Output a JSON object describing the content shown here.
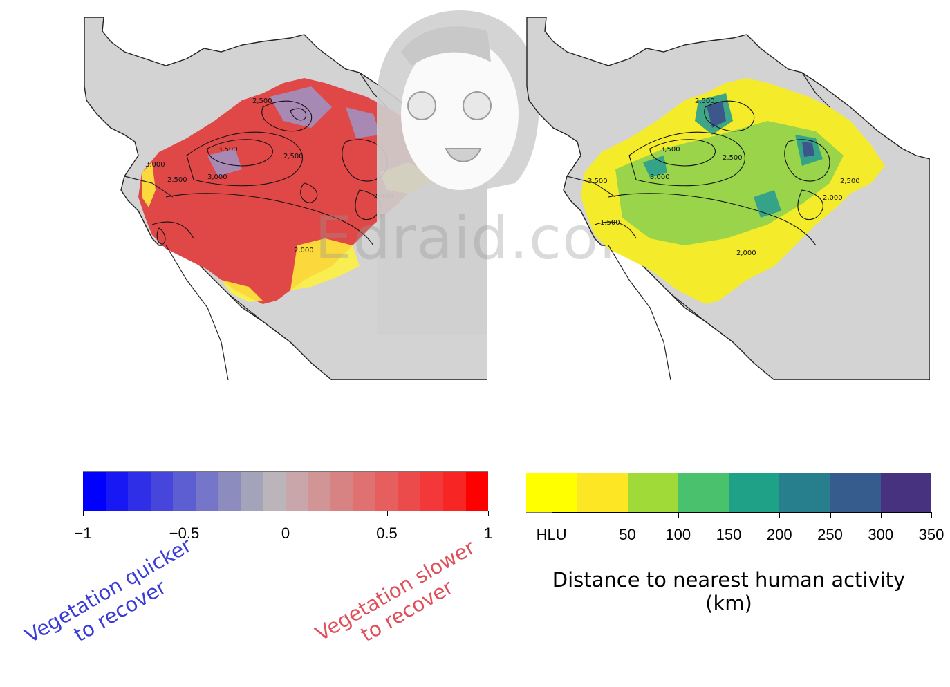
{
  "left_colorbar": {
    "colors": [
      "#0000ff",
      "#1818f4",
      "#2f2fe8",
      "#4646dd",
      "#5e5ed3",
      "#7575c9",
      "#8c8cbf",
      "#a3a3b9",
      "#bbb5bb",
      "#c8a6aa",
      "#d19596",
      "#d88383",
      "#df7171",
      "#e65e5e",
      "#ec4b4b",
      "#f23838",
      "#f82525",
      "#ff0000"
    ],
    "ticks": [
      {
        "value": -1,
        "label": "−1"
      },
      {
        "value": -0.5,
        "label": "−0.5"
      },
      {
        "value": 0,
        "label": "0"
      },
      {
        "value": 0.5,
        "label": "0.5"
      },
      {
        "value": 1,
        "label": "1"
      }
    ],
    "range": [
      -1,
      1
    ],
    "label_quicker": [
      "Vegetation quicker",
      "to recover"
    ],
    "label_slower": [
      "Vegetation slower",
      "to recover"
    ]
  },
  "right_colorbar": {
    "colors": [
      "#ffff00",
      "#fde725",
      "#a0da39",
      "#4ac16d",
      "#1fa187",
      "#277f8e",
      "#365c8d",
      "#46327e"
    ],
    "ticks": [
      {
        "index": 0.5,
        "label": "HLU"
      },
      {
        "index": 1,
        "label": ""
      },
      {
        "index": 2,
        "label": "50"
      },
      {
        "index": 3,
        "label": "100"
      },
      {
        "index": 4,
        "label": "150"
      },
      {
        "index": 5,
        "label": "200"
      },
      {
        "index": 6,
        "label": "250"
      },
      {
        "index": 7,
        "label": "300"
      },
      {
        "index": 8,
        "label": "350"
      }
    ],
    "title": [
      "Distance to nearest human activity",
      "(km)"
    ]
  },
  "contour_labels": [
    "2,500",
    "2,000",
    "3,500",
    "2,500",
    "3,000",
    "2,500",
    "3,000",
    "2,000",
    "2,000",
    "2,500",
    "1,500",
    "2,000",
    "3,500"
  ],
  "colors": {
    "land": "#d3d3d3",
    "border": "#222222",
    "contour": "#111111"
  },
  "watermark": "Edraid.com"
}
